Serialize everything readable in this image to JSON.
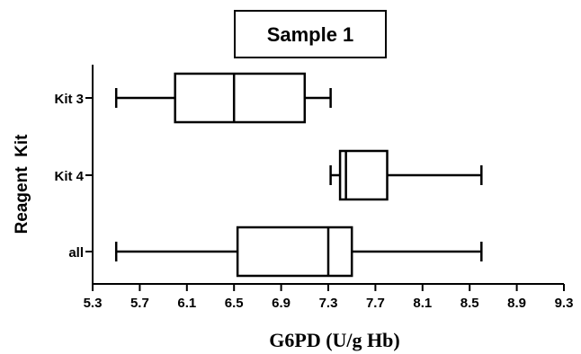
{
  "chart_data": {
    "type": "boxplot",
    "orientation": "horizontal",
    "title": "Sample 1",
    "xlabel": "G6PD (U/g Hb)",
    "ylabel": "Reagent  Kit",
    "xlim": [
      5.3,
      9.3
    ],
    "xticks": [
      "5.3",
      "5.7",
      "6.1",
      "6.5",
      "6.9",
      "7.3",
      "7.7",
      "8.1",
      "8.5",
      "8.9",
      "9.3"
    ],
    "grid": false,
    "series": [
      {
        "name": "Kit 3",
        "min": 5.5,
        "q1": 6.0,
        "median": 6.5,
        "q3": 7.1,
        "max": 7.32
      },
      {
        "name": "Kit 4",
        "min": 7.32,
        "q1": 7.4,
        "median": 7.45,
        "q3": 7.8,
        "max": 8.6
      },
      {
        "name": "all",
        "min": 5.5,
        "q1": 6.53,
        "median": 7.3,
        "q3": 7.5,
        "max": 8.6
      }
    ]
  }
}
